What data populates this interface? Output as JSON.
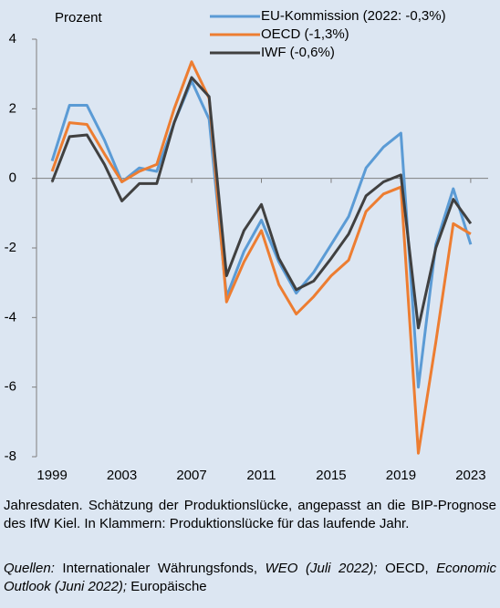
{
  "chart_data": {
    "type": "line",
    "y_label": "Prozent",
    "x": [
      1999,
      2000,
      2001,
      2002,
      2003,
      2004,
      2005,
      2006,
      2007,
      2008,
      2009,
      2010,
      2011,
      2012,
      2013,
      2014,
      2015,
      2016,
      2017,
      2018,
      2019,
      2020,
      2021,
      2022,
      2023
    ],
    "xlim": [
      1998,
      2024
    ],
    "xticks": [
      1999,
      2003,
      2007,
      2011,
      2015,
      2019,
      2023
    ],
    "ylim": [
      -8,
      4
    ],
    "yticks": [
      4,
      2,
      0,
      -2,
      -4,
      -6,
      -8
    ],
    "legend": "top-right",
    "series": [
      {
        "name": "EU-Kommission (2022: -0,3%)",
        "color": "#5b9bd5",
        "values": [
          0.5,
          2.1,
          2.1,
          1.1,
          -0.1,
          0.3,
          0.2,
          1.6,
          2.8,
          1.7,
          -3.4,
          -2.1,
          -1.2,
          -2.4,
          -3.3,
          -2.7,
          -1.9,
          -1.1,
          0.3,
          0.9,
          1.3,
          -6.0,
          -1.9,
          -0.3,
          -1.9
        ]
      },
      {
        "name": "OECD (-1,3%)",
        "color": "#ed7d31",
        "values": [
          0.2,
          1.6,
          1.55,
          0.7,
          -0.1,
          0.2,
          0.4,
          2.0,
          3.35,
          2.3,
          -3.55,
          -2.4,
          -1.5,
          -3.05,
          -3.9,
          -3.4,
          -2.8,
          -2.35,
          -0.95,
          -0.45,
          -0.25,
          -7.9,
          -4.7,
          -1.3,
          -1.6
        ]
      },
      {
        "name": "IWF (-0,6%)",
        "color": "#404040",
        "values": [
          -0.1,
          1.2,
          1.25,
          0.4,
          -0.65,
          -0.15,
          -0.15,
          1.6,
          2.9,
          2.35,
          -2.8,
          -1.5,
          -0.75,
          -2.3,
          -3.2,
          -2.95,
          -2.3,
          -1.6,
          -0.5,
          -0.1,
          0.1,
          -4.3,
          -2.0,
          -0.6,
          -1.3
        ]
      }
    ]
  },
  "note": "Jahresdaten. Schätzung der Produktionslücke, angepasst an die BIP-Prognose des IfW Kiel. In Klammern: Produktionslücke für das laufende Jahr.",
  "sources": [
    "Quellen:",
    " Internationaler Währungsfonds, ",
    "WEO (Juli 2022);",
    " OECD, ",
    "Economic Outlook (Juni 2022);",
    " Europäische"
  ]
}
